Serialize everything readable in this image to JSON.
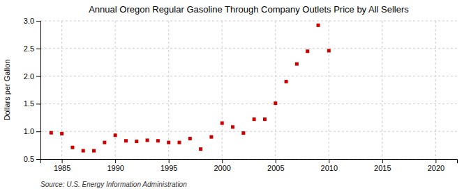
{
  "chart_data": {
    "type": "scatter",
    "title": "Annual Oregon Regular Gasoline Through Company Outlets Price by All Sellers",
    "ylabel": "Dollars per Gallon",
    "annotations": [
      "Source: U.S. Energy Information Administration"
    ],
    "x": [
      1984,
      1985,
      1986,
      1987,
      1988,
      1989,
      1990,
      1991,
      1992,
      1993,
      1994,
      1995,
      1996,
      1997,
      1998,
      1999,
      2000,
      2001,
      2002,
      2003,
      2004,
      2005,
      2006,
      2007,
      2008,
      2009,
      2010
    ],
    "values": [
      0.975,
      0.96,
      0.71,
      0.65,
      0.65,
      0.8,
      0.93,
      0.83,
      0.82,
      0.84,
      0.83,
      0.8,
      0.8,
      0.87,
      0.68,
      0.9,
      1.15,
      1.08,
      0.97,
      1.22,
      1.22,
      1.51,
      1.9,
      2.22,
      2.45,
      2.92,
      2.46
    ],
    "color": "#cc0000",
    "marker": "square",
    "xlim": [
      1983,
      2022
    ],
    "xticks": [
      1985,
      1990,
      1995,
      2000,
      2005,
      2010,
      2015,
      2020
    ],
    "ylim": [
      0.5,
      3.0
    ],
    "yticks": [
      0.5,
      {
        "value": 1.0,
        "label": "1.0"
      },
      1.5,
      {
        "value": 2.0,
        "label": "2.0"
      },
      2.5,
      {
        "value": 3.0,
        "label": "3.0"
      }
    ],
    "grid": true
  }
}
